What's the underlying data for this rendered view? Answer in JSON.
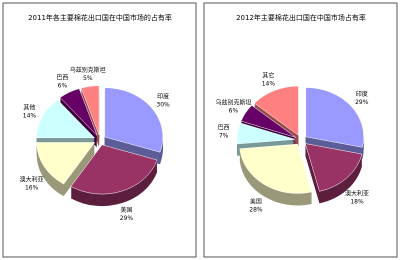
{
  "chart_data": [
    {
      "type": "pie",
      "title": "2011年各主要棉花出口国在中国市场的占有率",
      "categories": [
        "印度",
        "美国",
        "澳大利亚",
        "其他",
        "巴西",
        "乌兹别克斯坦"
      ],
      "values": [
        30,
        29,
        16,
        14,
        6,
        5
      ],
      "value_labels": [
        "30%",
        "29%",
        "16%",
        "14%",
        "6%",
        "5%"
      ],
      "colors": [
        "#9999ff",
        "#993366",
        "#ffffcc",
        "#ccffff",
        "#660066",
        "#ff8080"
      ]
    },
    {
      "type": "pie",
      "title": "2012年主要棉花出口国在中国市场占有率",
      "categories": [
        "印度",
        "澳大利亚",
        "美国",
        "巴西",
        "乌兹别克斯坦",
        "其它"
      ],
      "values": [
        29,
        18,
        28,
        7,
        6,
        14
      ],
      "value_labels": [
        "29%",
        "18%",
        "28%",
        "7%",
        "6%",
        "14%"
      ],
      "colors": [
        "#9999ff",
        "#993366",
        "#ffffcc",
        "#ccffff",
        "#660066",
        "#ff8080"
      ]
    }
  ]
}
